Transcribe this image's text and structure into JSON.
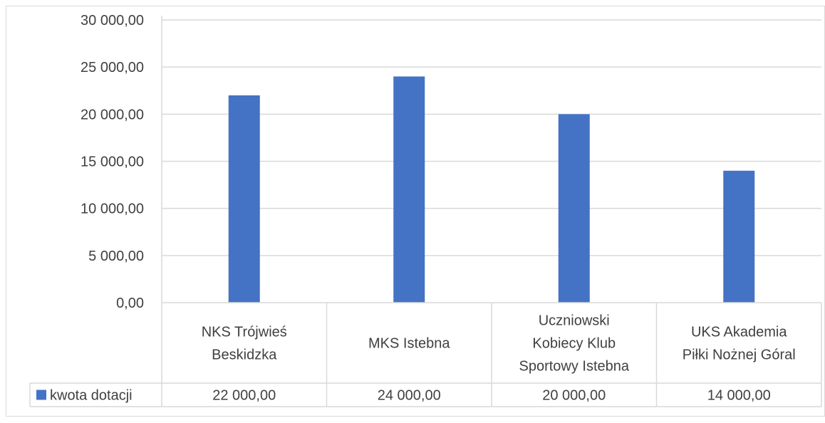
{
  "chart_data": {
    "type": "bar",
    "categories": [
      [
        "NKS Trójwieś",
        "Beskidzka"
      ],
      [
        "MKS Istebna"
      ],
      [
        "Uczniowski",
        "Kobiecy Klub",
        "Sportowy Istebna"
      ],
      [
        "UKS Akademia",
        "Piłki Nożnej Góral"
      ]
    ],
    "series": [
      {
        "name": "kwota dotacji",
        "values": [
          22000,
          24000,
          20000,
          14000
        ],
        "value_labels": [
          "22 000,00",
          "24 000,00",
          "20 000,00",
          "14 000,00"
        ],
        "color": "#4472C4"
      }
    ],
    "ylim": [
      0,
      30000
    ],
    "yticks": [
      0,
      5000,
      10000,
      15000,
      20000,
      25000,
      30000
    ],
    "ytick_labels": [
      "0,00",
      "5 000,00",
      "10 000,00",
      "15 000,00",
      "20 000,00",
      "25 000,00",
      "30 000,00"
    ],
    "grid": true,
    "data_table": true,
    "gridline_color": "#d9d9d9",
    "text_color": "#404040"
  }
}
